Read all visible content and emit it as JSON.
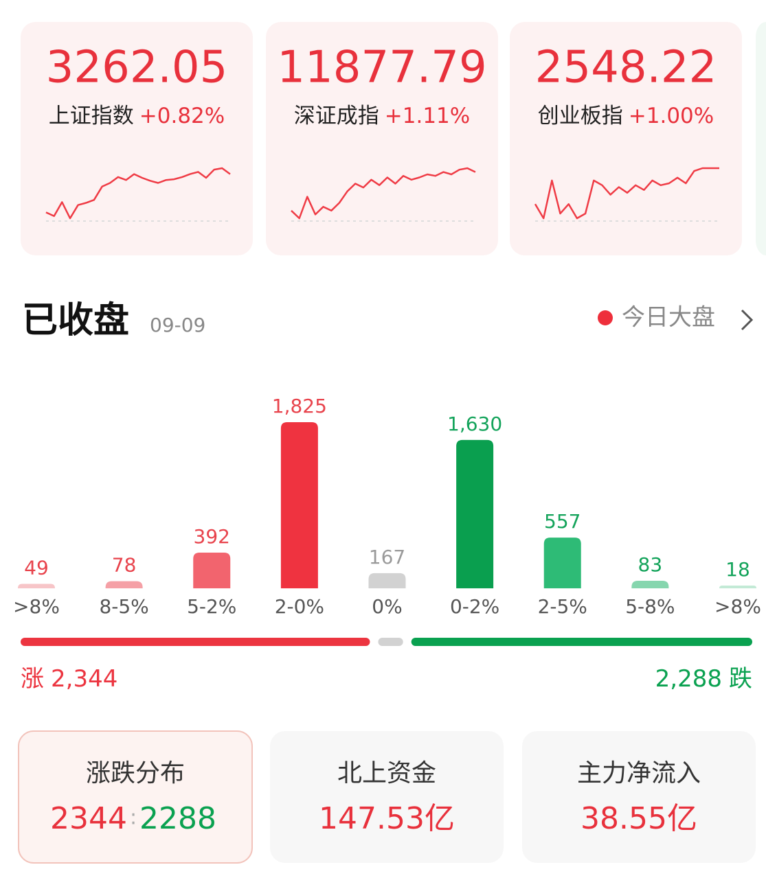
{
  "indices": [
    {
      "value": "3262.05",
      "name": "上证指数",
      "change": "+0.82%",
      "sparkline": [
        12,
        7,
        26,
        4,
        22,
        25,
        29,
        47,
        52,
        60,
        56,
        64,
        59,
        55,
        52,
        56,
        57,
        60,
        64,
        67,
        59,
        70,
        72,
        64
      ]
    },
    {
      "value": "11877.79",
      "name": "深证成指",
      "change": "+1.11%",
      "sparkline": [
        17,
        7,
        35,
        12,
        22,
        17,
        27,
        42,
        52,
        47,
        57,
        50,
        60,
        52,
        62,
        57,
        60,
        64,
        62,
        67,
        64,
        70,
        72,
        67
      ]
    },
    {
      "value": "2548.22",
      "name": "创业板指",
      "change": "+1.00%",
      "sparkline": [
        32,
        17,
        57,
        22,
        32,
        17,
        22,
        57,
        52,
        42,
        50,
        44,
        52,
        47,
        57,
        52,
        54,
        60,
        54,
        67,
        70,
        70,
        70
      ]
    }
  ],
  "header": {
    "title": "已收盘",
    "date": "09-09",
    "link": "今日大盘"
  },
  "chart_data": {
    "type": "bar",
    "categories": [
      ">8%",
      "8-5%",
      "5-2%",
      "2-0%",
      "0%",
      "0-2%",
      "2-5%",
      "5-8%",
      ">8%"
    ],
    "values": [
      49,
      78,
      392,
      1825,
      167,
      1630,
      557,
      83,
      18
    ],
    "value_labels": [
      "49",
      "78",
      "392",
      "1,825",
      "167",
      "1,630",
      "557",
      "83",
      "18"
    ],
    "colors": [
      "#f7c5c8",
      "#f5a0a6",
      "#f2646e",
      "#ef3340",
      "#d2d2d2",
      "#0a9f4f",
      "#2ebb76",
      "#86d6ae",
      "#c3ead6"
    ],
    "label_colors": [
      "#e8434c",
      "#e8434c",
      "#e8434c",
      "#e8434c",
      "#9a9a9a",
      "#13a35a",
      "#13a35a",
      "#13a35a",
      "#13a35a"
    ]
  },
  "breadth": {
    "up": {
      "name": "涨",
      "value": 2344,
      "label": "2,344",
      "color": "#ec3540"
    },
    "down": {
      "name": "跌",
      "value": 2288,
      "label": "2,288",
      "color": "#0aa150"
    }
  },
  "cards": [
    {
      "title": "涨跌分布",
      "up": "2344",
      "down": "2288"
    },
    {
      "title": "北上资金",
      "value": "147.53亿"
    },
    {
      "title": "主力净流入",
      "value": "38.55亿"
    }
  ]
}
